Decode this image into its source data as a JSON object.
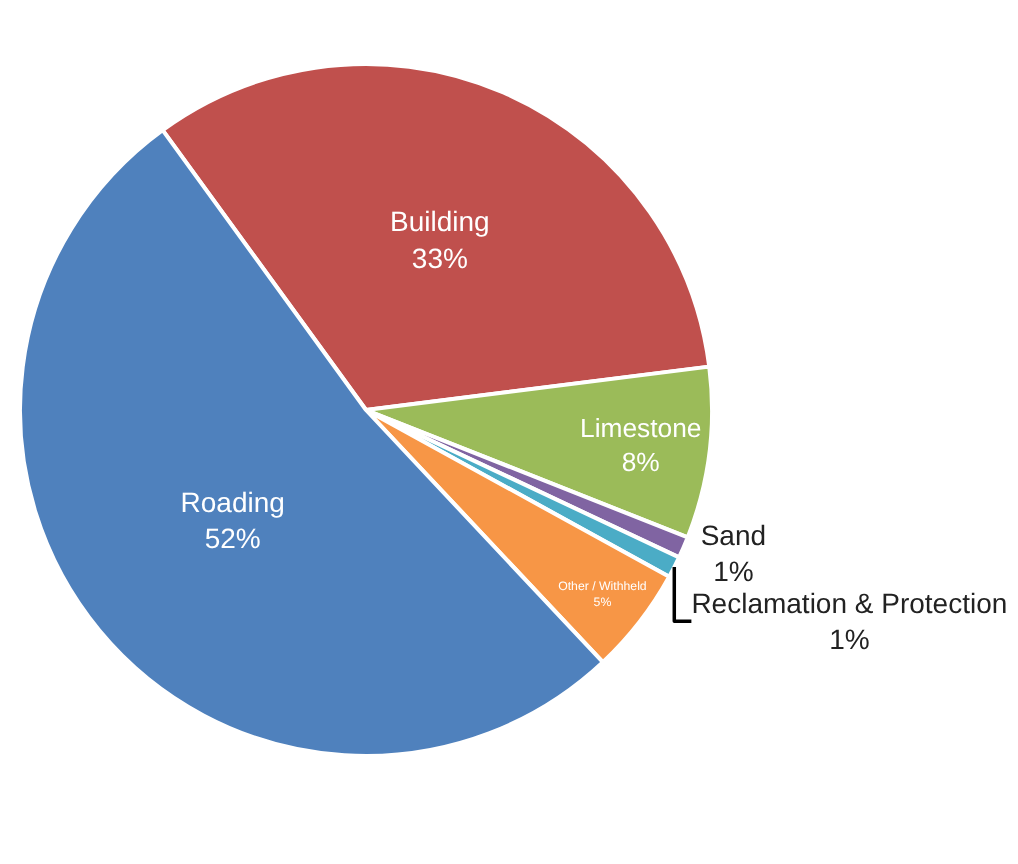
{
  "chart_data": {
    "type": "pie",
    "categories": [
      "Building",
      "Limestone",
      "Sand",
      "Reclamation & Protection",
      "Other / Withheld",
      "Roading"
    ],
    "values": [
      33,
      8,
      1,
      1,
      5,
      52
    ],
    "value_labels": [
      "33%",
      "8%",
      "1%",
      "1%",
      "5%",
      "52%"
    ],
    "colors": [
      "#c0504d",
      "#9bbb59",
      "#8064a2",
      "#4bacc6",
      "#f79646",
      "#4f81bd"
    ],
    "legend": false
  }
}
